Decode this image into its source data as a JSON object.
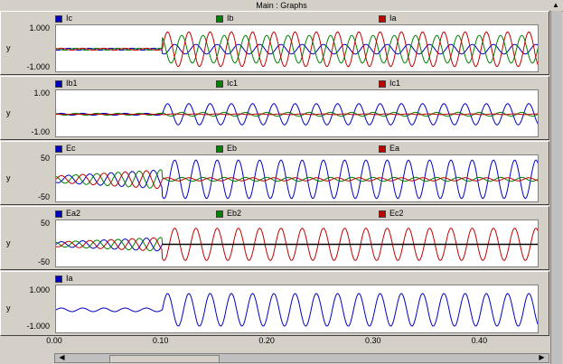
{
  "window": {
    "title": "Main : Graphs"
  },
  "colors": {
    "blue": "#0000c0",
    "green": "#008000",
    "red": "#c00000",
    "black": "#000000"
  },
  "chart_data": [
    {
      "type": "line",
      "ylabel": "y",
      "yticks": [
        "1.000",
        "-1.000"
      ],
      "ylim": [
        -1.2,
        1.2
      ],
      "legend": [
        {
          "name": "Ic",
          "color": "blue"
        },
        {
          "name": "Ib",
          "color": "green"
        },
        {
          "name": "Ia",
          "color": "red"
        }
      ],
      "series": [
        {
          "name": "Ic",
          "pre": {
            "amp": 0.05
          },
          "post": {
            "amp": 0.25
          },
          "phase": 240
        },
        {
          "name": "Ib",
          "pre": {
            "amp": 0.05
          },
          "post": {
            "amp": 0.72
          },
          "phase": 120
        },
        {
          "name": "Ia",
          "pre": {
            "amp": 0.05
          },
          "post": {
            "amp": 0.9
          },
          "phase": 0
        }
      ]
    },
    {
      "type": "line",
      "ylabel": "y",
      "yticks": [
        "1.00",
        "-1.00"
      ],
      "ylim": [
        -1.2,
        1.2
      ],
      "legend": [
        {
          "name": "Ib1",
          "color": "blue"
        },
        {
          "name": "Ic1",
          "color": "green"
        },
        {
          "name": "Ic1",
          "color": "red"
        }
      ],
      "series": [
        {
          "name": "Ib1",
          "pre": {
            "amp": 0.05
          },
          "post": {
            "amp": 0.55
          },
          "phase": 0,
          "offset": -0.15
        },
        {
          "name": "Ic1",
          "pre": {
            "amp": 0.05
          },
          "post": {
            "amp": 0.1
          },
          "phase": 120
        },
        {
          "name": "Ic1",
          "pre": {
            "amp": 0.0
          },
          "post": {
            "amp": 0.02
          },
          "phase": 240
        }
      ]
    },
    {
      "type": "line",
      "ylabel": "y",
      "yticks": [
        "50",
        "-50"
      ],
      "ylim": [
        -60,
        60
      ],
      "legend": [
        {
          "name": "Ec",
          "color": "blue"
        },
        {
          "name": "Eb",
          "color": "green"
        },
        {
          "name": "Ea",
          "color": "red"
        }
      ],
      "series": [
        {
          "name": "Ec",
          "pre": {
            "amp": 25,
            "ramp": true
          },
          "post": {
            "amp": 50
          },
          "phase": 240
        },
        {
          "name": "Eb",
          "pre": {
            "amp": 25,
            "ramp": true
          },
          "post": {
            "amp": 5
          },
          "phase": 120
        },
        {
          "name": "Ea",
          "pre": {
            "amp": 25,
            "ramp": true
          },
          "post": {
            "amp": 4
          },
          "phase": 0
        }
      ]
    },
    {
      "type": "line",
      "ylabel": "y",
      "yticks": [
        "50",
        "-50"
      ],
      "ylim": [
        -60,
        60
      ],
      "legend": [
        {
          "name": "Ea2",
          "color": "blue"
        },
        {
          "name": "Eb2",
          "color": "green"
        },
        {
          "name": "Ec2",
          "color": "red"
        }
      ],
      "series": [
        {
          "name": "Ea2",
          "pre": {
            "amp": 18,
            "ramp": true
          },
          "post": {
            "amp": 0
          },
          "phase": 0
        },
        {
          "name": "Eb2",
          "pre": {
            "amp": 18,
            "ramp": true
          },
          "post": {
            "amp": 0
          },
          "phase": 120
        },
        {
          "name": "Ec2",
          "pre": {
            "amp": 18,
            "ramp": true
          },
          "post": {
            "amp": 42
          },
          "phase": 240
        }
      ]
    },
    {
      "type": "line",
      "ylabel": "y",
      "yticks": [
        "1.000",
        "-1.000"
      ],
      "ylim": [
        -1.3,
        1.3
      ],
      "legend": [
        {
          "name": "Ia",
          "color": "blue"
        }
      ],
      "series": [
        {
          "name": "Ia",
          "pre": {
            "amp": 0.1
          },
          "post": {
            "amp": 0.9
          },
          "phase": 0
        }
      ]
    }
  ],
  "x_axis": {
    "ticks": [
      "0.00",
      "0.10",
      "0.20",
      "0.30",
      "0.40"
    ],
    "tick_values": [
      0.0,
      0.1,
      0.2,
      0.3,
      0.4
    ],
    "xlim": [
      0.0,
      0.455
    ],
    "fault_time": 0.1,
    "frequency_hz": 50
  }
}
